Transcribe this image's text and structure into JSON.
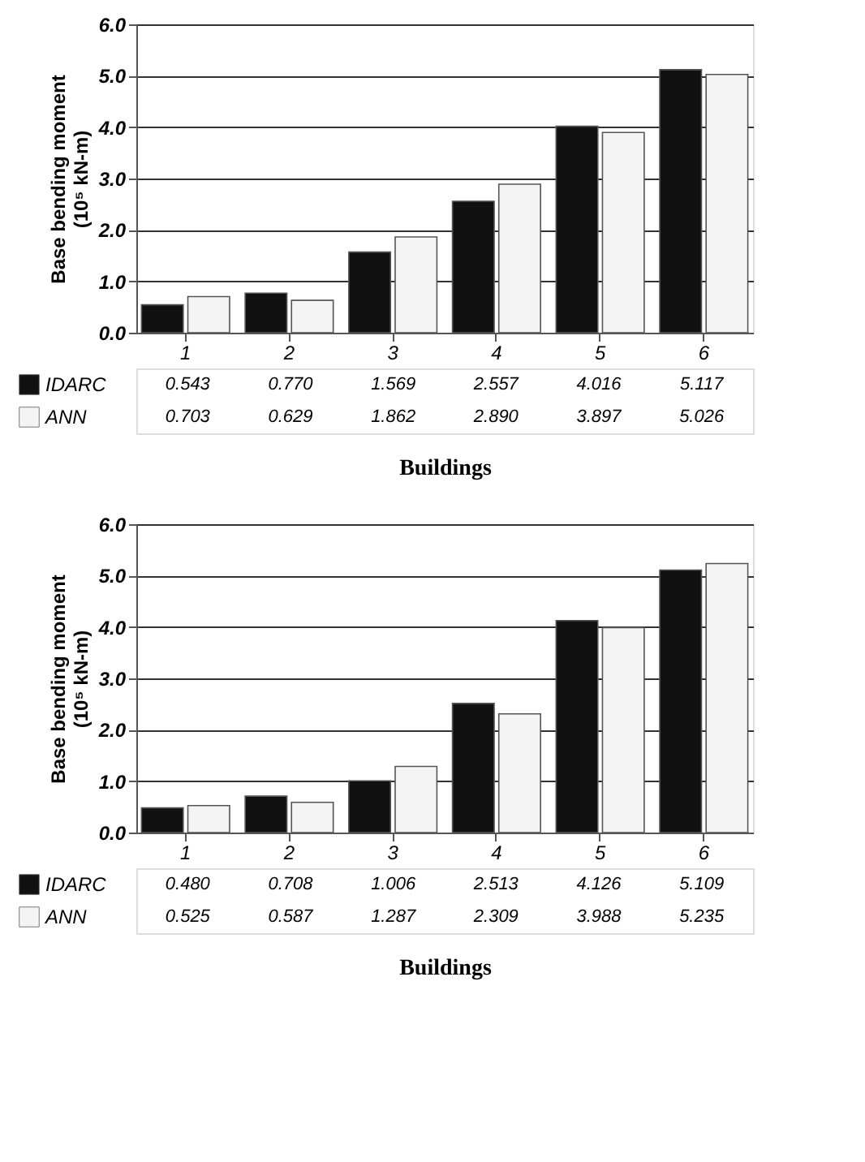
{
  "chart_data": [
    {
      "type": "bar",
      "categories": [
        "1",
        "2",
        "3",
        "4",
        "5",
        "6"
      ],
      "xlabel": "Buildings",
      "ylabel": "Base bending moment\n(10⁵ kN-m)",
      "ylim": [
        0,
        6
      ],
      "yticks": [
        {
          "value": 0,
          "label": "0.0"
        },
        {
          "value": 1,
          "label": "1.0"
        },
        {
          "value": 2,
          "label": "2.0"
        },
        {
          "value": 3,
          "label": "3.0"
        },
        {
          "value": 4,
          "label": "4.0"
        },
        {
          "value": 5,
          "label": "5.0"
        },
        {
          "value": 6,
          "label": "6.0"
        }
      ],
      "grid": "y",
      "legend": "bottom left",
      "series": [
        {
          "name": "IDARC",
          "color": "#111111",
          "values": [
            0.543,
            0.77,
            1.569,
            2.557,
            4.016,
            5.117
          ],
          "value_labels": [
            "0.543",
            "0.770",
            "1.569",
            "2.557",
            "4.016",
            "5.117"
          ]
        },
        {
          "name": "ANN",
          "color": "#f4f4f4",
          "values": [
            0.703,
            0.629,
            1.862,
            2.89,
            3.897,
            5.026
          ],
          "value_labels": [
            "0.703",
            "0.629",
            "1.862",
            "2.890",
            "3.897",
            "5.026"
          ]
        }
      ]
    },
    {
      "type": "bar",
      "categories": [
        "1",
        "2",
        "3",
        "4",
        "5",
        "6"
      ],
      "xlabel": "Buildings",
      "ylabel": "Base bending moment\n(10⁵ kN-m)",
      "ylim": [
        0,
        6
      ],
      "yticks": [
        {
          "value": 0,
          "label": "0.0"
        },
        {
          "value": 1,
          "label": "1.0"
        },
        {
          "value": 2,
          "label": "2.0"
        },
        {
          "value": 3,
          "label": "3.0"
        },
        {
          "value": 4,
          "label": "4.0"
        },
        {
          "value": 5,
          "label": "5.0"
        },
        {
          "value": 6,
          "label": "6.0"
        }
      ],
      "grid": "y",
      "legend": "bottom left",
      "series": [
        {
          "name": "IDARC",
          "color": "#111111",
          "values": [
            0.48,
            0.708,
            1.006,
            2.513,
            4.126,
            5.109
          ],
          "value_labels": [
            "0.480",
            "0.708",
            "1.006",
            "2.513",
            "4.126",
            "5.109"
          ]
        },
        {
          "name": "ANN",
          "color": "#f4f4f4",
          "values": [
            0.525,
            0.587,
            1.287,
            2.309,
            3.988,
            5.235
          ],
          "value_labels": [
            "0.525",
            "0.587",
            "1.287",
            "2.309",
            "3.988",
            "5.235"
          ]
        }
      ]
    }
  ]
}
